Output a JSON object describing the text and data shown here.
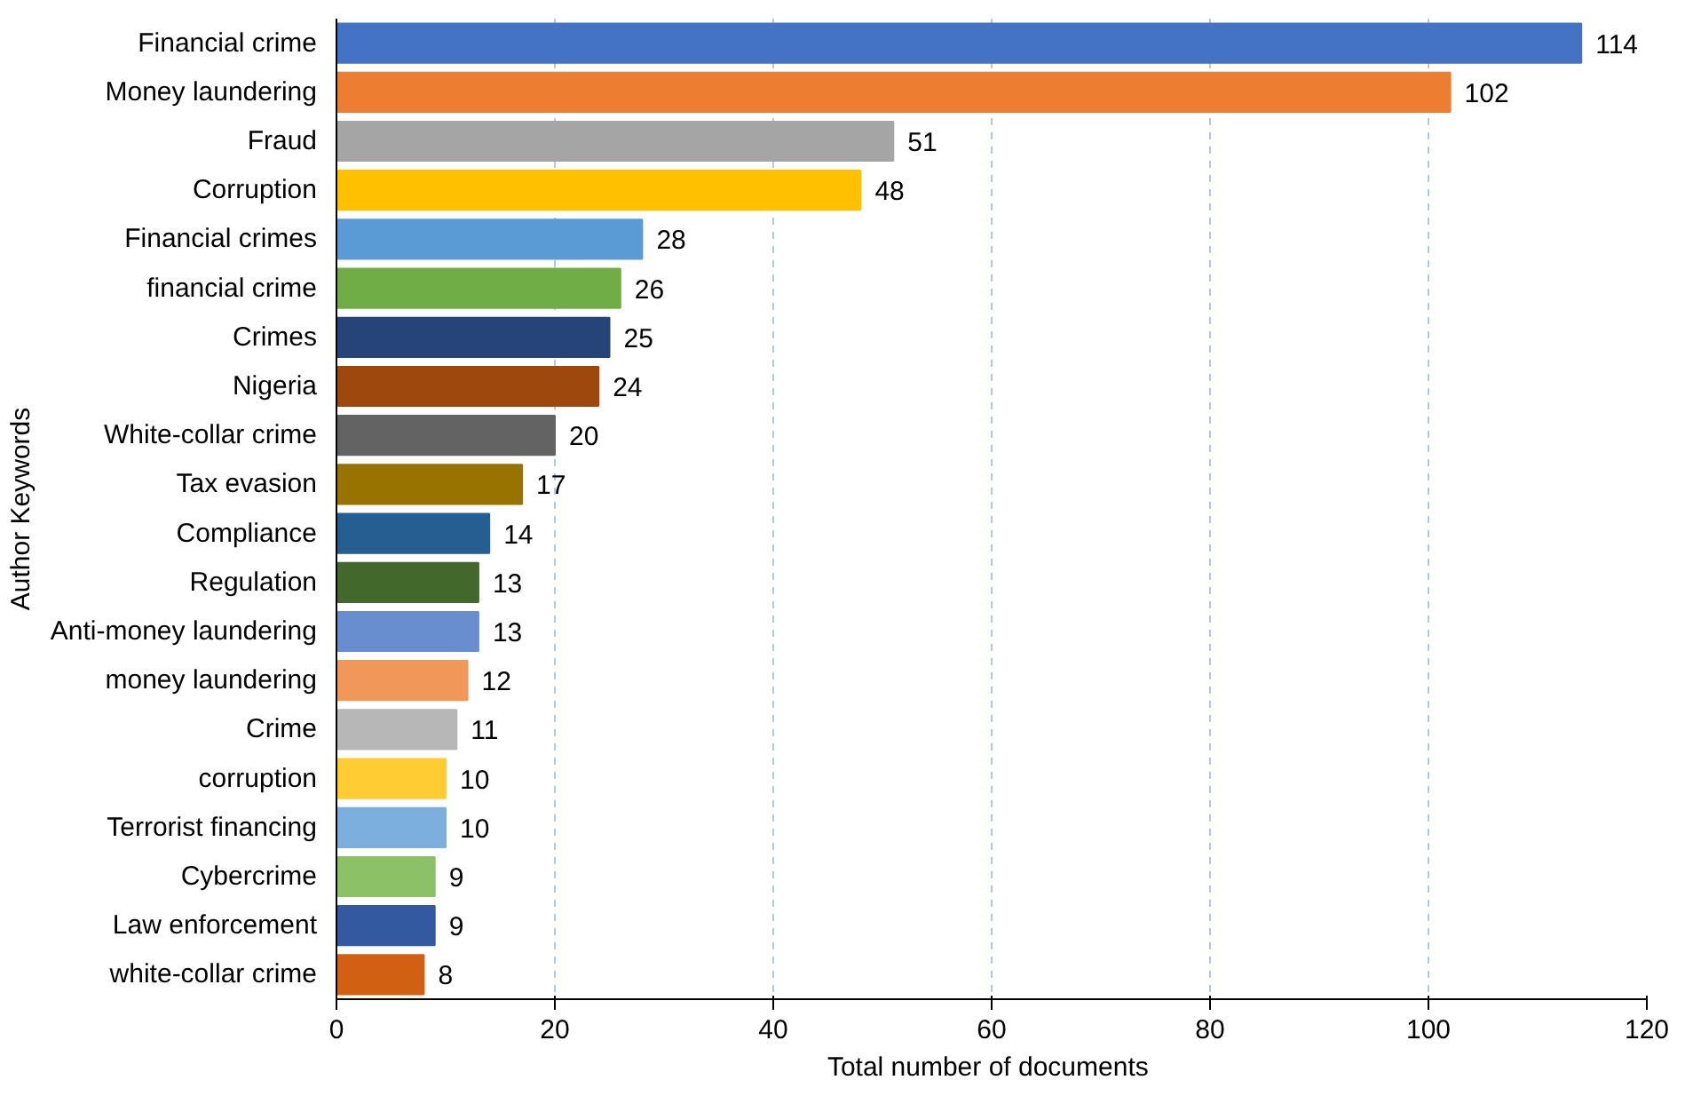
{
  "chart_data": {
    "type": "bar",
    "orientation": "horizontal",
    "xlabel": "Total number  of documents",
    "ylabel": "Author Keywords",
    "categories": [
      "Financial crime",
      "Money laundering",
      "Fraud",
      "Corruption",
      "Financial crimes",
      "financial crime",
      "Crimes",
      "Nigeria",
      "White-collar crime",
      "Tax evasion",
      "Compliance",
      "Regulation",
      "Anti-money laundering",
      "money laundering",
      "Crime",
      "corruption",
      "Terrorist financing",
      "Cybercrime",
      "Law enforcement",
      "white-collar crime"
    ],
    "values": [
      114,
      102,
      51,
      48,
      28,
      26,
      25,
      24,
      20,
      17,
      14,
      13,
      13,
      12,
      11,
      10,
      10,
      9,
      9,
      8
    ],
    "colors": [
      "#4472c4",
      "#ed7d31",
      "#a5a5a5",
      "#ffc000",
      "#5b9bd5",
      "#70ad47",
      "#264478",
      "#9e480e",
      "#636363",
      "#997300",
      "#255e91",
      "#43682b",
      "#698ed0",
      "#f1975a",
      "#b7b7b7",
      "#ffcd33",
      "#7cafdd",
      "#8cc168",
      "#335aa1",
      "#d26012"
    ],
    "xlim": [
      0,
      120
    ],
    "xticks": [
      0,
      20,
      40,
      60,
      80,
      100,
      120
    ],
    "grid": "x",
    "data_labels": true
  }
}
